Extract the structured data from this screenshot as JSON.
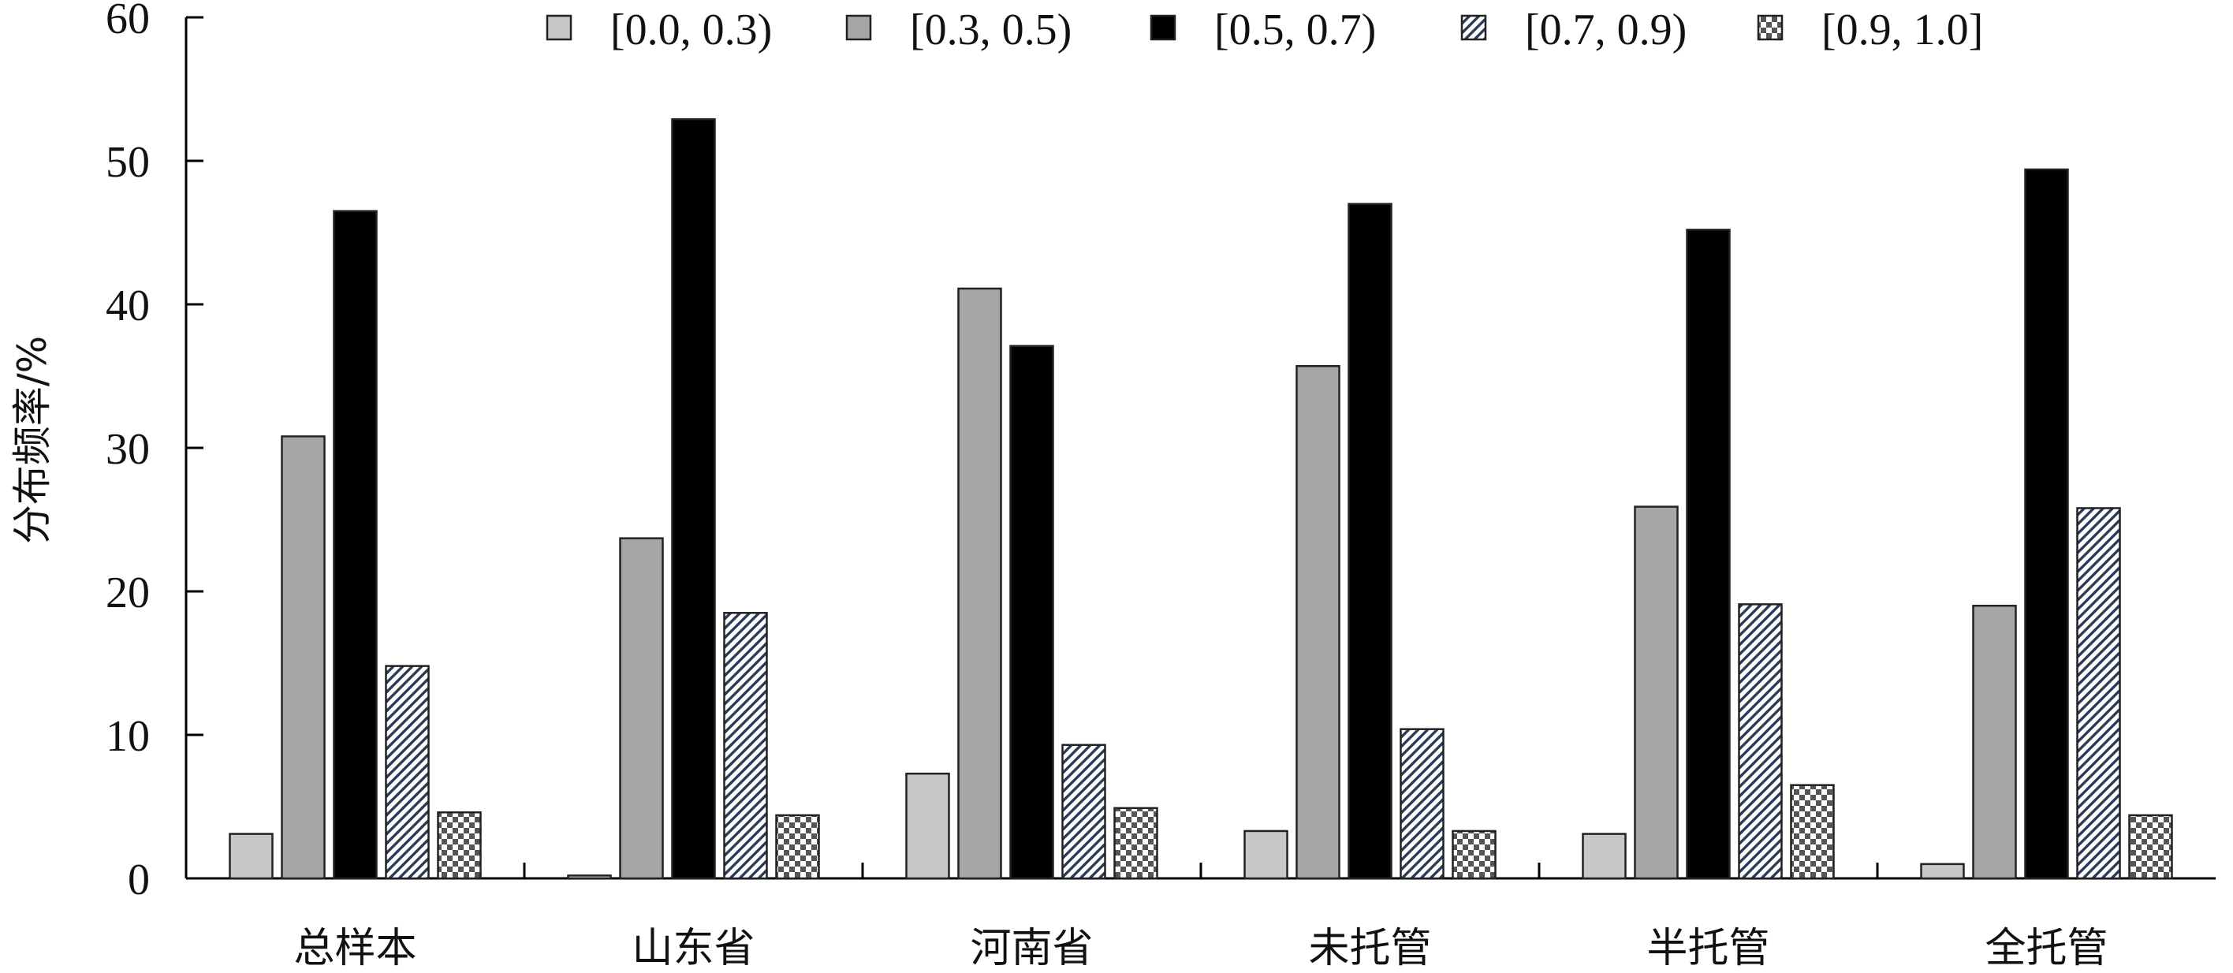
{
  "chart_data": {
    "type": "bar",
    "ylabel": "分布频率/%",
    "ylim": [
      0,
      60
    ],
    "yticks": [
      0,
      10,
      20,
      30,
      40,
      50,
      60
    ],
    "grid": false,
    "legend_position": "top",
    "categories": [
      "总样本",
      "山东省",
      "河南省",
      "未托管",
      "半托管",
      "全托管"
    ],
    "series": [
      {
        "name": "[0.0, 0.3)",
        "fill": "light-gray",
        "color": "#c8c8c8",
        "values": [
          3.1,
          0.2,
          7.3,
          3.3,
          3.1,
          1.0
        ]
      },
      {
        "name": "[0.3, 0.5)",
        "fill": "gray",
        "color": "#a6a6a6",
        "values": [
          30.8,
          23.7,
          41.1,
          35.7,
          25.9,
          19.0
        ]
      },
      {
        "name": "[0.5, 0.7)",
        "fill": "black",
        "color": "#000000",
        "values": [
          46.5,
          52.9,
          37.1,
          47.0,
          45.2,
          49.4
        ]
      },
      {
        "name": "[0.7, 0.9)",
        "fill": "diagonal-hatch",
        "color": "#2a3a5a",
        "values": [
          14.8,
          18.5,
          9.3,
          10.4,
          19.1,
          25.8
        ]
      },
      {
        "name": "[0.9, 1.0]",
        "fill": "checkerboard",
        "color": "#555555",
        "values": [
          4.6,
          4.4,
          4.9,
          3.3,
          6.5,
          4.4
        ]
      }
    ]
  }
}
